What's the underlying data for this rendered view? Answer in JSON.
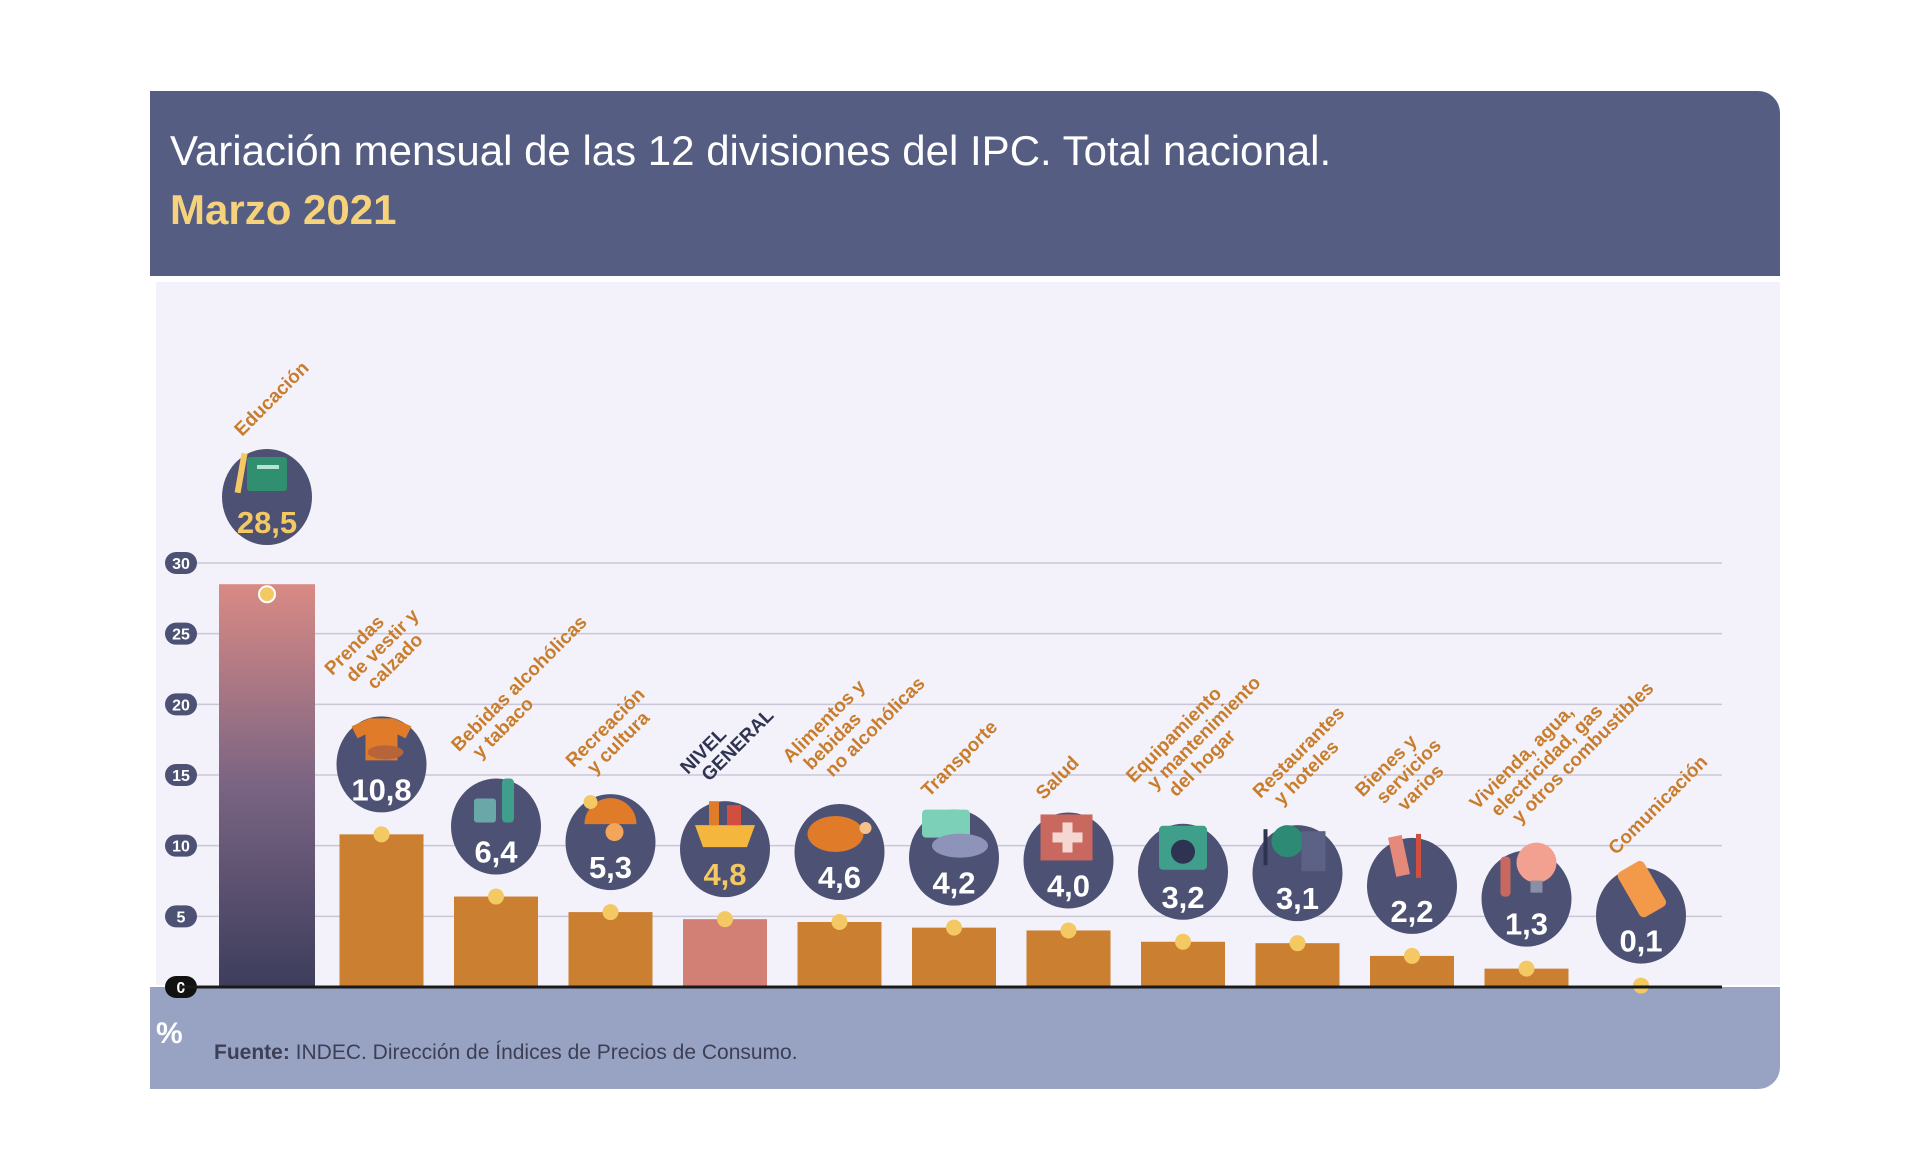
{
  "header": {
    "title": "Variación mensual de las 12 divisiones del IPC. Total nacional.",
    "subtitle": "Marzo 2021"
  },
  "footer": {
    "unit": "%",
    "source_label": "Fuente:",
    "source_text": "INDEC. Dirección de Índices de Precios de Consumo."
  },
  "colors": {
    "header_bg": "#565d82",
    "subtitle": "#f6d27a",
    "bar": "#cb7f31",
    "general_bar": "#d27f76",
    "top_bar_top": "#d98a84",
    "top_bar_bottom": "#3d3d5c",
    "badge": "#4d5275",
    "label": "#c97d2c"
  },
  "chart_data": {
    "type": "bar",
    "ylim": [
      0,
      30
    ],
    "yticks": [
      "0",
      "5",
      "10",
      "15",
      "20",
      "25",
      "30"
    ],
    "grid": true,
    "categories": [
      {
        "lines": [
          "Educación"
        ],
        "value": 28.5,
        "value_label": "28,5",
        "icon": "book-pencil-icon",
        "style": "top"
      },
      {
        "lines": [
          "Prendas",
          "de vestir y",
          "calzado"
        ],
        "value": 10.8,
        "value_label": "10,8",
        "icon": "tshirt-shoe-icon",
        "style": "normal"
      },
      {
        "lines": [
          "Bebidas alcohólicas",
          "y tabaco"
        ],
        "value": 6.4,
        "value_label": "6,4",
        "icon": "bottle-glass-icon",
        "style": "normal"
      },
      {
        "lines": [
          "Recreación",
          "y cultura"
        ],
        "value": 5.3,
        "value_label": "5,3",
        "icon": "beach-umbrella-icon",
        "style": "normal"
      },
      {
        "lines": [
          "NIVEL",
          "GENERAL"
        ],
        "value": 4.8,
        "value_label": "4,8",
        "icon": "shopping-basket-icon",
        "style": "general"
      },
      {
        "lines": [
          "Alimentos y",
          "bebidas",
          "no alcohólicas"
        ],
        "value": 4.6,
        "value_label": "4,6",
        "icon": "roast-chicken-icon",
        "style": "normal"
      },
      {
        "lines": [
          "Transporte"
        ],
        "value": 4.2,
        "value_label": "4,2",
        "icon": "sube-card-car-icon",
        "style": "normal"
      },
      {
        "lines": [
          "Salud"
        ],
        "value": 4.0,
        "value_label": "4,0",
        "icon": "medical-cross-icon",
        "style": "normal"
      },
      {
        "lines": [
          "Equipamiento",
          "y mantenimiento",
          "del hogar"
        ],
        "value": 3.2,
        "value_label": "3,2",
        "icon": "washing-machine-icon",
        "style": "normal"
      },
      {
        "lines": [
          "Restaurantes",
          "y hoteles"
        ],
        "value": 3.1,
        "value_label": "3,1",
        "icon": "plate-plane-icon",
        "style": "normal"
      },
      {
        "lines": [
          "Bienes y",
          "servicios",
          "varios"
        ],
        "value": 2.2,
        "value_label": "2,2",
        "icon": "comb-scissors-icon",
        "style": "normal"
      },
      {
        "lines": [
          "Vivienda, agua,",
          "electricidad, gas",
          "y otros combustibles"
        ],
        "value": 1.3,
        "value_label": "1,3",
        "icon": "lightbulb-icon",
        "style": "normal"
      },
      {
        "lines": [
          "Comunicación"
        ],
        "value": 0.1,
        "value_label": "0,1",
        "icon": "smartphone-icon",
        "style": "normal"
      }
    ]
  }
}
